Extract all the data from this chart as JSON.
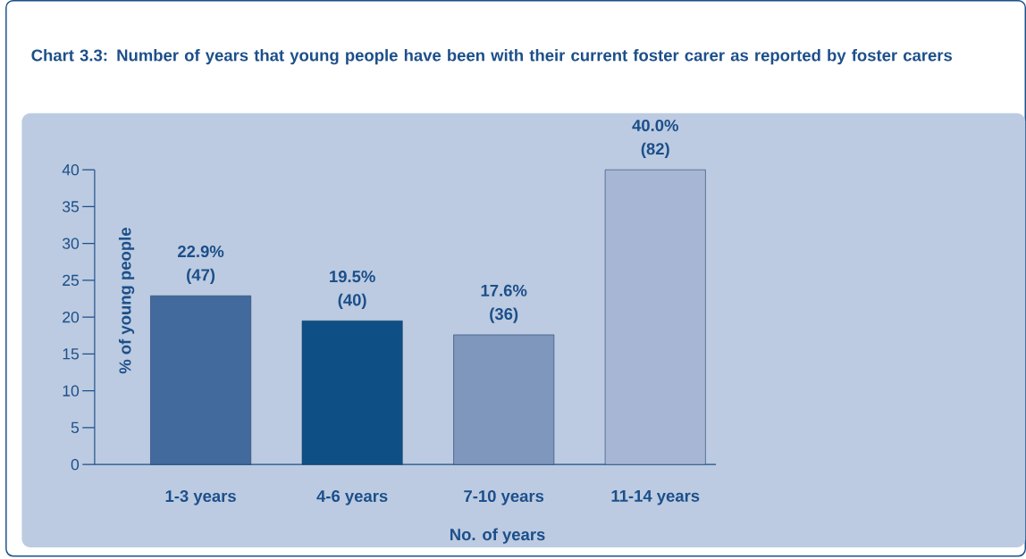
{
  "chart_data": {
    "type": "bar",
    "title": "Chart 3.3: Number of years that young people have been with their current foster carer as reported by foster carers",
    "xlabel": "No. of years",
    "ylabel": "% of young people",
    "categories": [
      "1-3 years",
      "4-6 years",
      "7-10 years",
      "11-14 years"
    ],
    "values": [
      22.9,
      19.5,
      17.6,
      40.0
    ],
    "colors": [
      "#426a9c",
      "#0e4f86",
      "#7f96bd",
      "#a7b6d4"
    ],
    "value_labels": [
      "22.9% (47)",
      "19.5% (40)",
      "17.6% (36)",
      "40.0% (82)"
    ],
    "ylim": [
      0,
      40
    ],
    "yticks": [
      0,
      5,
      10,
      15,
      20,
      25,
      30,
      35,
      40
    ]
  }
}
